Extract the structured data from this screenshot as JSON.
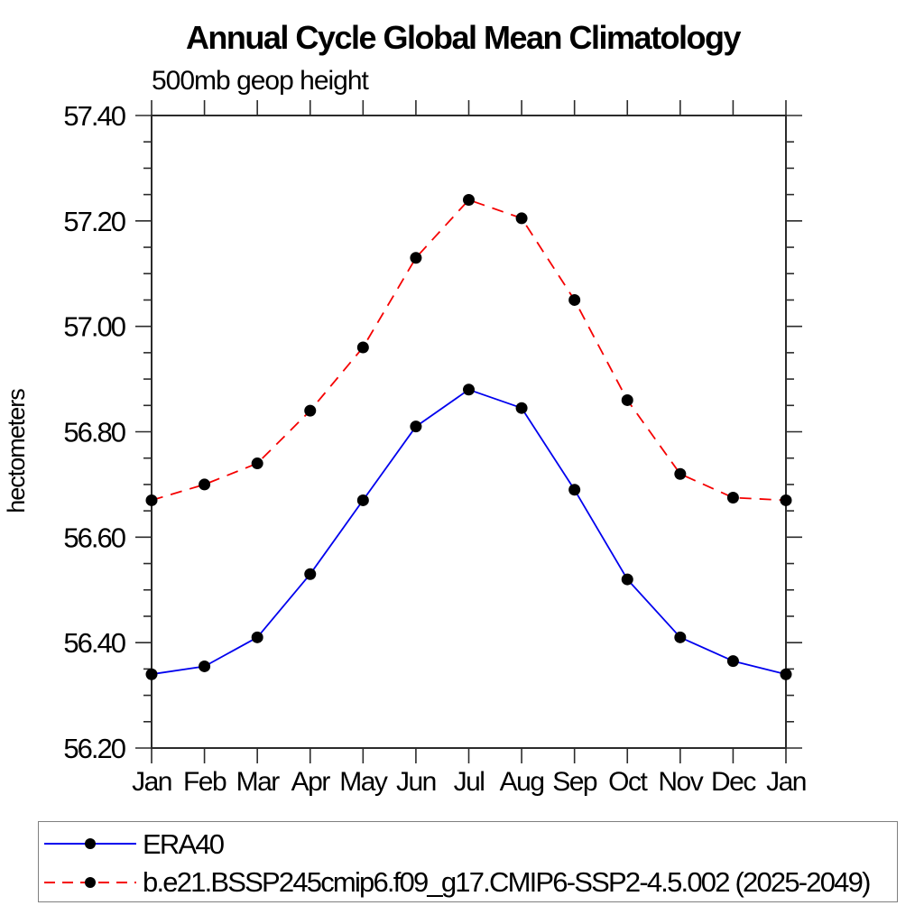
{
  "page_title": "Annual Cycle Global Mean Climatology",
  "header": {
    "title": "Annual Cycle Global Mean Climatology",
    "subtitle": "500mb geop height"
  },
  "axes": {
    "ylabel": "hectometers",
    "y_tick_labels": [
      "56.20",
      "56.40",
      "56.60",
      "56.80",
      "57.00",
      "57.20",
      "57.40"
    ],
    "x_tick_labels": [
      "Jan",
      "Feb",
      "Mar",
      "Apr",
      "May",
      "Jun",
      "Jul",
      "Aug",
      "Sep",
      "Oct",
      "Nov",
      "Dec",
      "Jan"
    ]
  },
  "colors": {
    "era40_line": "#0000ee",
    "model_line": "#f50000",
    "marker": "#000000",
    "axis": "#2b2b2b",
    "legend_border": "#7f7f7f"
  },
  "legend": {
    "position": "bottom-left",
    "items": [
      {
        "label": "ERA40",
        "color": "#0000ee",
        "style": "solid",
        "marker": "circle"
      },
      {
        "label": "b.e21.BSSP245cmip6.f09_g17.CMIP6-SSP2-4.5.002 (2025-2049)",
        "color": "#f50000",
        "style": "dashed",
        "marker": "circle"
      }
    ]
  },
  "chart_data": {
    "type": "line",
    "title": "Annual Cycle Global Mean Climatology",
    "subtitle": "500mb geop height",
    "xlabel": "",
    "ylabel": "hectometers",
    "categories": [
      "Jan",
      "Feb",
      "Mar",
      "Apr",
      "May",
      "Jun",
      "Jul",
      "Aug",
      "Sep",
      "Oct",
      "Nov",
      "Dec",
      "Jan"
    ],
    "ylim": [
      56.2,
      57.4
    ],
    "ytick_major_step": 0.2,
    "ytick_minor_step": 0.05,
    "grid": false,
    "legend_position": "bottom-left",
    "axis_color": "#2b2b2b",
    "marker_color": "#000000",
    "series": [
      {
        "name": "ERA40",
        "color": "#0000ee",
        "dash": "solid",
        "marker": "circle",
        "values": [
          56.34,
          56.355,
          56.41,
          56.53,
          56.67,
          56.81,
          56.88,
          56.845,
          56.69,
          56.52,
          56.41,
          56.365,
          56.34
        ]
      },
      {
        "name": "b.e21.BSSP245cmip6.f09_g17.CMIP6-SSP2-4.5.002 (2025-2049)",
        "color": "#f50000",
        "dash": "dashed",
        "marker": "circle",
        "values": [
          56.67,
          56.7,
          56.74,
          56.84,
          56.96,
          57.13,
          57.24,
          57.205,
          57.05,
          56.86,
          56.72,
          56.675,
          56.67
        ]
      }
    ]
  }
}
